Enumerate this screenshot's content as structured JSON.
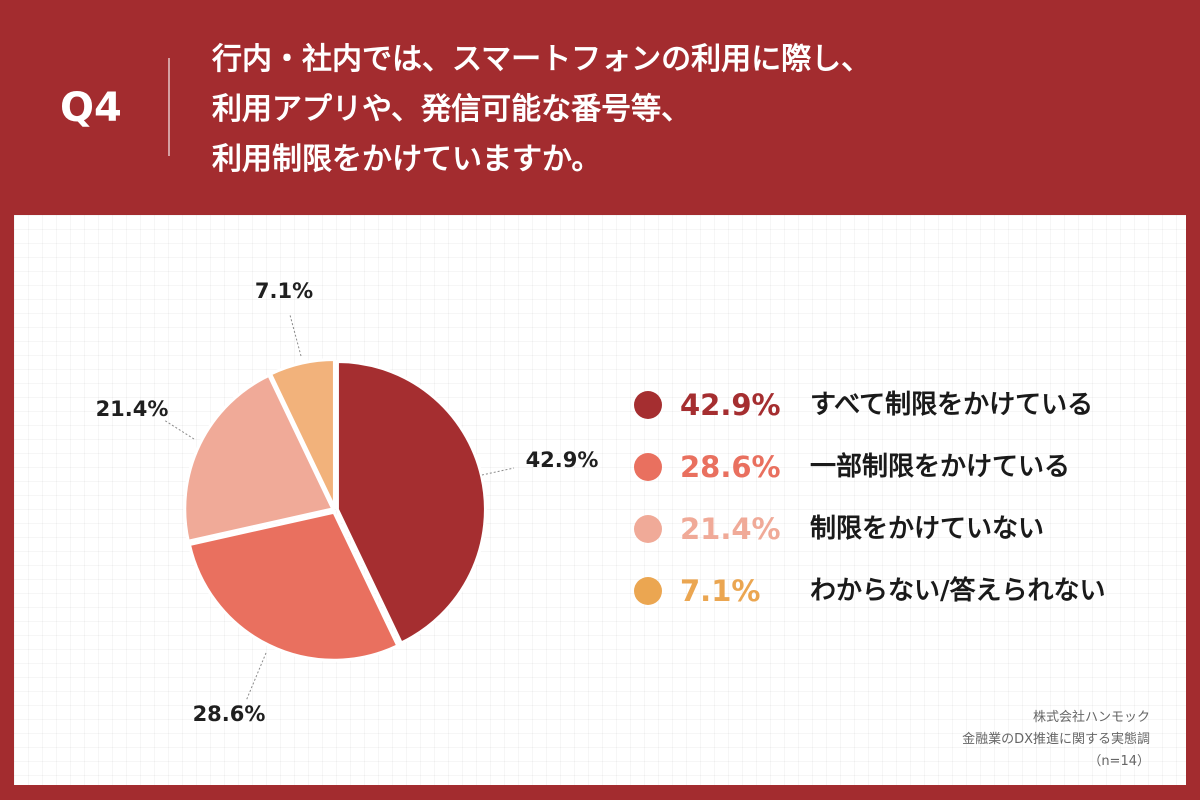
{
  "question": {
    "label": "Q4",
    "lines": [
      "行内・社内では、スマートフォンの利用に際し、",
      "利用アプリや、発信可能な番号等、",
      "利用制限をかけていますか。"
    ]
  },
  "colors": {
    "header_bg": "#a32c2f",
    "series": [
      "#a52e30",
      "#e9705f",
      "#f0aa98",
      "#f2b27b"
    ],
    "legend_pct": [
      "#a52e30",
      "#e9705f",
      "#f0aa98",
      "#eba651"
    ],
    "legend_dot": [
      "#a52e30",
      "#e9705f",
      "#f0aa98",
      "#eba651"
    ]
  },
  "chart_data": {
    "type": "pie",
    "categories": [
      "すべて制限をかけている",
      "一部制限をかけている",
      "制限をかけていない",
      "わからない/答えられない"
    ],
    "values": [
      42.9,
      28.6,
      21.4,
      7.1
    ],
    "labels": [
      "42.9%",
      "28.6%",
      "21.4%",
      "7.1%"
    ],
    "legend_placement": "right",
    "start": "top, clockwise"
  },
  "source": {
    "lines": [
      "株式会社ハンモック",
      "金融業のDX推進に関する実態調",
      "（n=14）"
    ]
  }
}
